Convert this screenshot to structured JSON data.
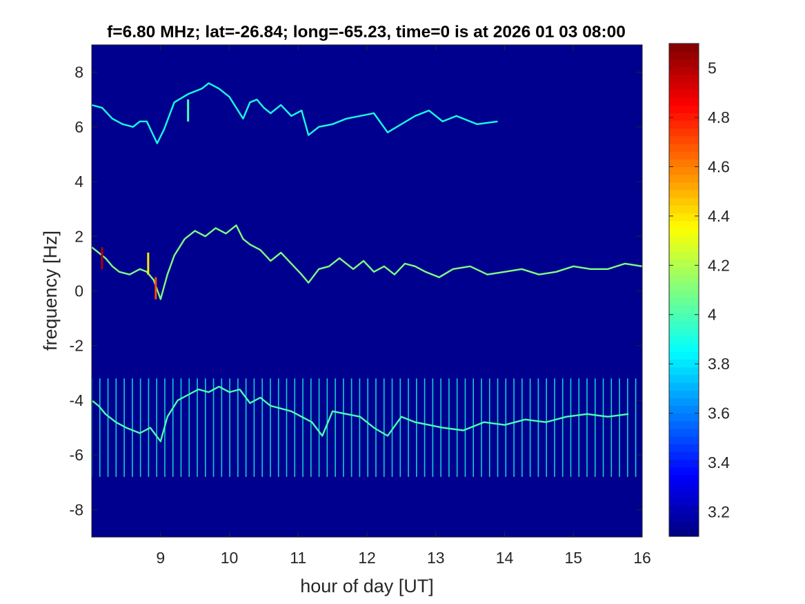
{
  "chart_data": {
    "type": "heatmap",
    "title": "f=6.80 MHz;  lat=-26.84; long=-65.23, time=0 is at 2026 01 03 08:00",
    "xlabel": "hour of day [UT]",
    "ylabel": "frequency [Hz]",
    "xlim": [
      8.0,
      16.0
    ],
    "ylim": [
      -9.0,
      9.0
    ],
    "x_ticks": [
      9,
      10,
      11,
      12,
      13,
      14,
      15,
      16
    ],
    "y_ticks": [
      -8,
      -6,
      -4,
      -2,
      0,
      2,
      4,
      6,
      8
    ],
    "colorbar": {
      "colormap": "jet",
      "range": [
        3.1,
        5.1
      ],
      "ticks": [
        3.2,
        3.4,
        3.6,
        3.8,
        4,
        4.2,
        4.4,
        4.6,
        4.8,
        5
      ],
      "background_color": "#00008f"
    },
    "traces": [
      {
        "x": [
          8.0,
          8.15,
          8.3,
          8.45,
          8.6,
          8.7,
          8.8,
          8.95,
          9.05,
          9.2,
          9.4,
          9.6,
          9.7,
          9.85,
          10.0,
          10.1,
          10.2,
          10.3,
          10.4,
          10.5,
          10.6,
          10.75,
          10.9,
          11.05,
          11.15,
          11.3,
          11.5,
          11.7,
          11.9,
          12.1,
          12.3,
          12.5,
          12.7,
          12.9,
          13.1,
          13.3,
          13.6,
          13.9
        ],
        "y": [
          6.8,
          6.7,
          6.3,
          6.1,
          6.0,
          6.2,
          6.2,
          5.4,
          5.9,
          6.9,
          7.2,
          7.4,
          7.6,
          7.4,
          7.1,
          6.7,
          6.3,
          6.9,
          7.0,
          6.7,
          6.5,
          6.8,
          6.4,
          6.6,
          5.7,
          6.0,
          6.1,
          6.3,
          6.4,
          6.5,
          5.8,
          6.1,
          6.4,
          6.6,
          6.2,
          6.4,
          6.1,
          6.2
        ]
      },
      {
        "x": [
          8.0,
          8.1,
          8.2,
          8.3,
          8.4,
          8.55,
          8.7,
          8.8,
          8.9,
          9.0,
          9.1,
          9.2,
          9.35,
          9.5,
          9.65,
          9.8,
          9.95,
          10.1,
          10.2,
          10.3,
          10.45,
          10.6,
          10.75,
          10.9,
          11.05,
          11.15,
          11.3,
          11.45,
          11.6,
          11.8,
          11.95,
          12.1,
          12.25,
          12.4,
          12.55,
          12.7,
          12.85,
          13.05,
          13.25,
          13.5,
          13.75,
          14.0,
          14.25,
          14.5,
          14.75,
          15.0,
          15.25,
          15.5,
          15.75,
          16.0
        ],
        "y": [
          1.6,
          1.4,
          1.2,
          0.9,
          0.7,
          0.6,
          0.8,
          0.7,
          0.4,
          -0.3,
          0.6,
          1.3,
          1.9,
          2.2,
          2.0,
          2.3,
          2.1,
          2.4,
          1.9,
          1.7,
          1.5,
          1.1,
          1.4,
          1.0,
          0.6,
          0.3,
          0.8,
          0.9,
          1.2,
          0.8,
          1.1,
          0.7,
          0.9,
          0.6,
          1.0,
          0.9,
          0.7,
          0.5,
          0.8,
          0.9,
          0.6,
          0.7,
          0.8,
          0.6,
          0.7,
          0.9,
          0.8,
          0.8,
          1.0,
          0.9
        ]
      },
      {
        "x": [
          8.0,
          8.1,
          8.2,
          8.35,
          8.5,
          8.7,
          8.85,
          9.0,
          9.1,
          9.25,
          9.4,
          9.55,
          9.7,
          9.85,
          10.0,
          10.15,
          10.3,
          10.45,
          10.6,
          10.75,
          10.9,
          11.05,
          11.2,
          11.35,
          11.5,
          11.7,
          11.9,
          12.1,
          12.3,
          12.5,
          12.7,
          12.9,
          13.1,
          13.4,
          13.7,
          14.0,
          14.3,
          14.6,
          14.9,
          15.2,
          15.5,
          15.8
        ],
        "y": [
          -4.0,
          -4.2,
          -4.5,
          -4.8,
          -5.0,
          -5.2,
          -5.0,
          -5.5,
          -4.6,
          -4.0,
          -3.8,
          -3.6,
          -3.7,
          -3.5,
          -3.7,
          -3.6,
          -4.1,
          -3.9,
          -4.2,
          -4.3,
          -4.4,
          -4.6,
          -4.8,
          -5.3,
          -4.4,
          -4.5,
          -4.6,
          -5.0,
          -5.3,
          -4.6,
          -4.8,
          -4.9,
          -5.0,
          -5.1,
          -4.8,
          -4.9,
          -4.7,
          -4.8,
          -4.6,
          -4.5,
          -4.6,
          -4.5
        ]
      }
    ],
    "trace_intensity": [
      3.9,
      4.1,
      4.0
    ],
    "hot_spots": [
      {
        "x": 8.15,
        "y": 1.2,
        "value": 5.0
      },
      {
        "x": 8.82,
        "y": 1.0,
        "value": 4.4
      },
      {
        "x": 8.93,
        "y": 0.1,
        "value": 4.7
      },
      {
        "x": 9.4,
        "y": 6.6,
        "value": 4.0
      }
    ],
    "vertical_streaks": {
      "start": 8.0,
      "step": 0.118,
      "y_range": [
        -6.8,
        -3.2
      ],
      "value": 3.9
    }
  }
}
